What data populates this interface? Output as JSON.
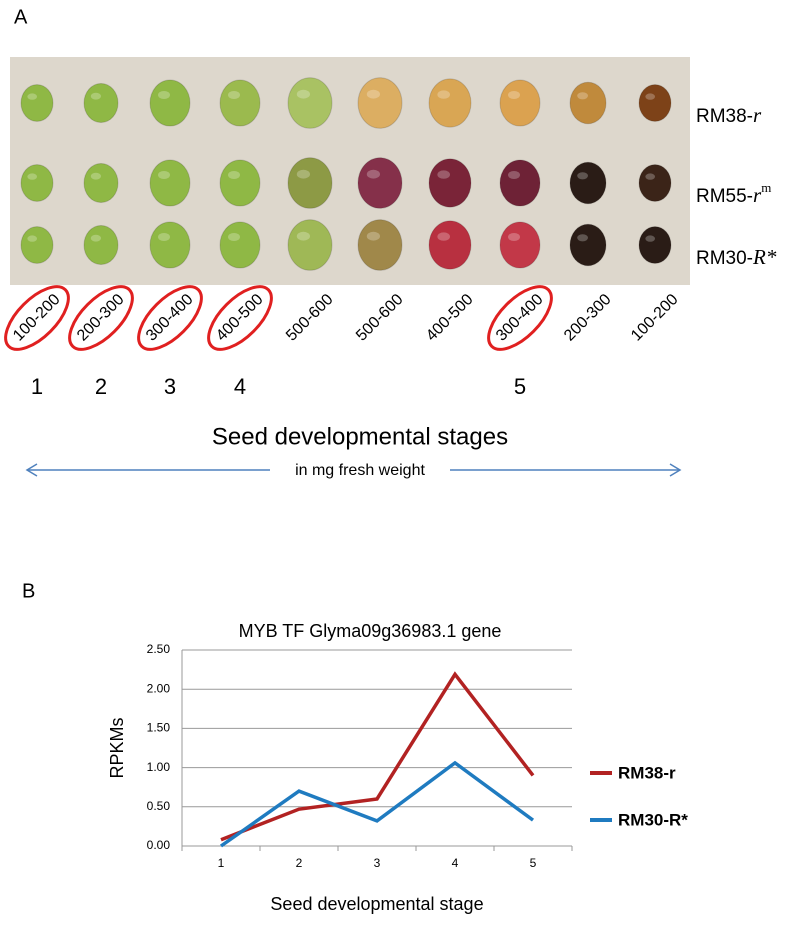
{
  "panel_a": {
    "label": "A",
    "rows": [
      {
        "base": "RM38-",
        "italic": "r"
      },
      {
        "base": "RM55-",
        "italic": "r",
        "sup": "m"
      },
      {
        "base": "RM30-",
        "italic": "R*"
      }
    ],
    "weights": [
      {
        "text": "100-200",
        "stage": "1"
      },
      {
        "text": "200-300",
        "stage": "2"
      },
      {
        "text": "300-400",
        "stage": "3"
      },
      {
        "text": "400-500",
        "stage": "4"
      },
      {
        "text": "500-600"
      },
      {
        "text": "500-600"
      },
      {
        "text": "400-500"
      },
      {
        "text": "300-400",
        "stage": "5"
      },
      {
        "text": "200-300"
      },
      {
        "text": "100-200"
      }
    ],
    "axis_title": "Seed developmental stages",
    "axis_note": "in mg fresh weight"
  },
  "panel_b": {
    "label": "B"
  },
  "chart_data": {
    "type": "line",
    "title": "MYB TF   Glyma09g36983.1 gene",
    "x_label": "Seed developmental stage",
    "y_label": "RPKMs",
    "categories": [
      "1",
      "2",
      "3",
      "4",
      "5"
    ],
    "series": [
      {
        "name": "RM38-r",
        "color": "#b22222",
        "values": [
          0.08,
          0.47,
          0.6,
          2.19,
          0.9
        ]
      },
      {
        "name": "RM30-R*",
        "color": "#1f7bc0",
        "values": [
          0.0,
          0.7,
          0.32,
          1.06,
          0.33
        ]
      }
    ],
    "ylim": [
      0,
      2.5
    ],
    "yticks": [
      {
        "value": 0,
        "label": "0.00"
      },
      {
        "value": 0.5,
        "label": "0.50"
      },
      {
        "value": 1,
        "label": "1.00"
      },
      {
        "value": 1.5,
        "label": "1.50"
      },
      {
        "value": 2,
        "label": "2.00"
      },
      {
        "value": 2.5,
        "label": "2.50"
      }
    ],
    "grid": true,
    "legend": "right"
  }
}
